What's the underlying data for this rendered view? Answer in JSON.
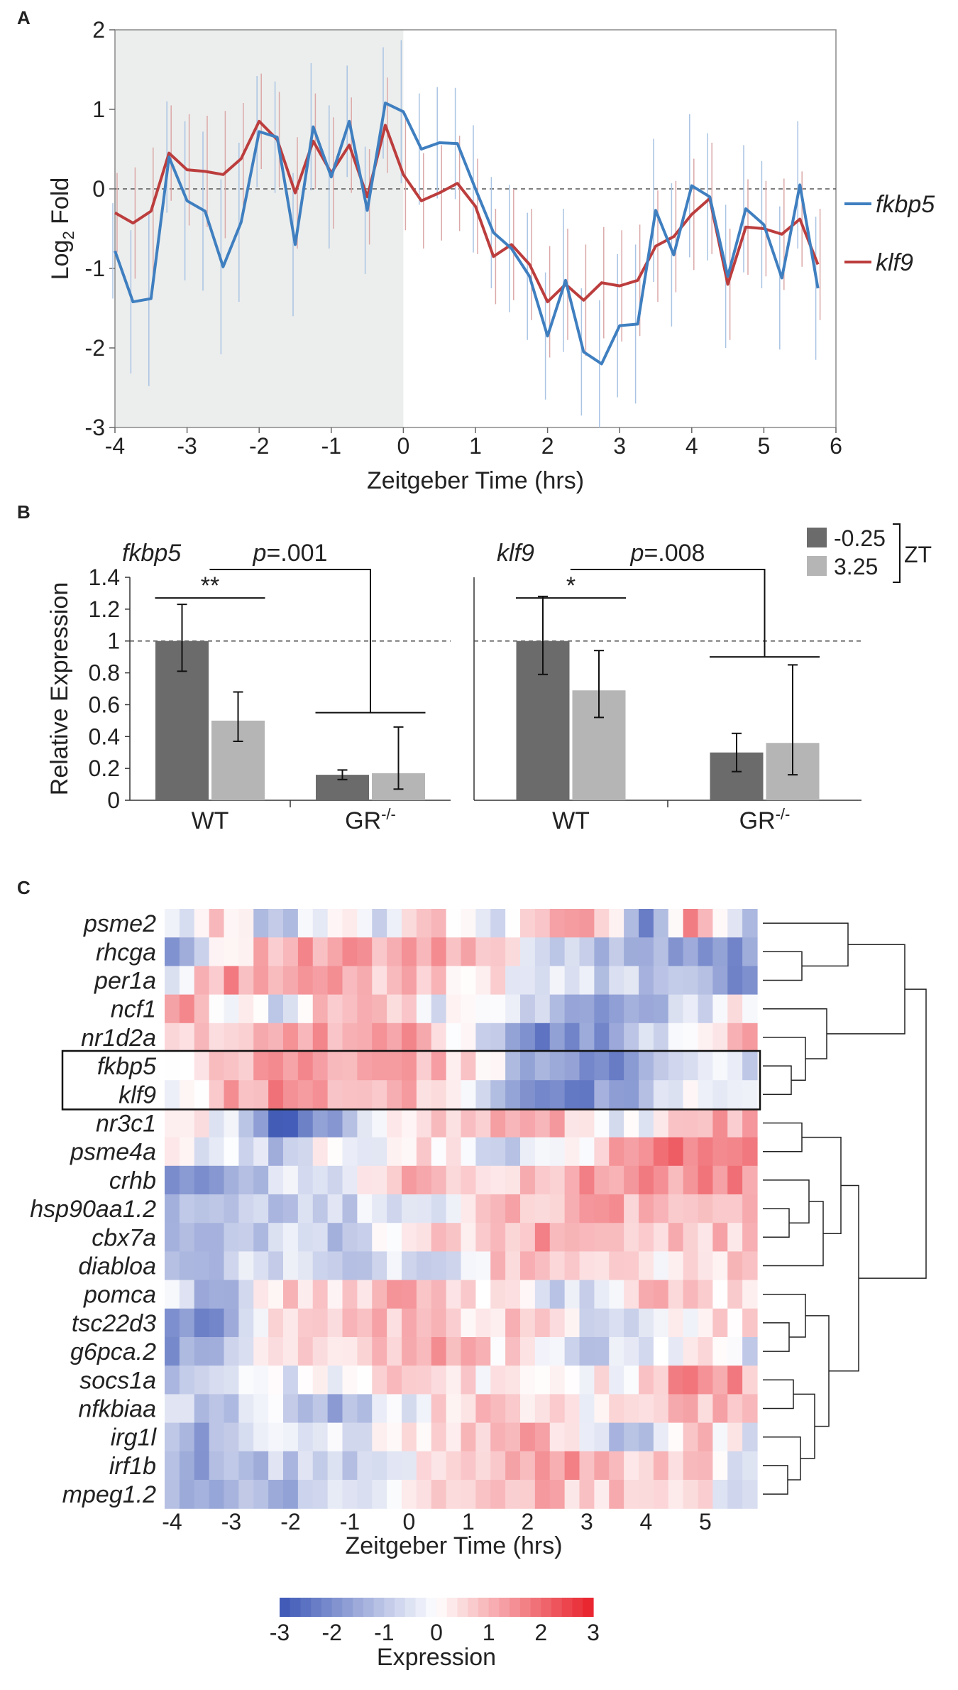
{
  "panels": {
    "a": "A",
    "b": "B",
    "c": "C"
  },
  "chart_data": [
    {
      "type": "line",
      "title": "",
      "xlabel": "Zeitgeber Time (hrs)",
      "ylabel_main": "Log",
      "ylabel_sub": "2",
      "ylabel_rest": " Fold",
      "xlim": [
        -4,
        6
      ],
      "ylim": [
        -3,
        2
      ],
      "x_ticks": [
        -4,
        -3,
        -2,
        -1,
        0,
        1,
        2,
        3,
        4,
        5,
        6
      ],
      "x_tick_labels": [
        "-4",
        "-3",
        "-2",
        "-1",
        "0",
        "1",
        "2",
        "3",
        "4",
        "5",
        "6"
      ],
      "y_ticks": [
        -3,
        -2,
        -1,
        0,
        1,
        2
      ],
      "y_tick_labels": [
        "-3",
        "-2",
        "-1",
        "0",
        "1",
        "2"
      ],
      "shaded_region": [
        -4,
        0
      ],
      "reference_line": 0,
      "x": [
        -4.0,
        -3.75,
        -3.5,
        -3.25,
        -3.0,
        -2.75,
        -2.5,
        -2.25,
        -2.0,
        -1.75,
        -1.5,
        -1.25,
        -1.0,
        -0.75,
        -0.5,
        -0.25,
        0.0,
        0.25,
        0.5,
        0.75,
        1.0,
        1.25,
        1.5,
        1.75,
        2.0,
        2.25,
        2.5,
        2.75,
        3.0,
        3.25,
        3.5,
        3.75,
        4.0,
        4.25,
        4.5,
        4.75,
        5.0,
        5.25,
        5.5,
        5.75
      ],
      "series": [
        {
          "name": "fkbp5",
          "color": "#3f7fc0",
          "values": [
            -0.78,
            -1.42,
            -1.38,
            0.4,
            -0.15,
            -0.28,
            -0.98,
            -0.42,
            0.72,
            0.65,
            -0.7,
            0.78,
            0.15,
            0.85,
            -0.27,
            1.08,
            0.97,
            0.5,
            0.58,
            0.57,
            0.0,
            -0.55,
            -0.75,
            -1.1,
            -1.85,
            -1.15,
            -2.05,
            -2.2,
            -1.72,
            -1.7,
            -0.27,
            -0.83,
            0.04,
            -0.1,
            -1.1,
            -0.25,
            -0.45,
            -1.12,
            0.05,
            -1.25
          ],
          "error": [
            0.6,
            0.9,
            1.1,
            0.7,
            1.0,
            1.0,
            1.1,
            1.0,
            0.7,
            0.7,
            0.9,
            0.8,
            0.9,
            0.7,
            0.8,
            0.7,
            0.9,
            0.7,
            0.7,
            0.7,
            0.8,
            0.7,
            0.8,
            0.8,
            0.8,
            0.9,
            0.8,
            0.8,
            0.9,
            1.0,
            0.9,
            0.9,
            0.9,
            0.8,
            0.9,
            0.8,
            0.8,
            0.9,
            0.8,
            0.9
          ]
        },
        {
          "name": "klf9",
          "color": "#bc3d3d",
          "values": [
            -0.3,
            -0.43,
            -0.28,
            0.45,
            0.24,
            0.22,
            0.18,
            0.38,
            0.85,
            0.62,
            -0.05,
            0.6,
            0.2,
            0.55,
            -0.1,
            0.8,
            0.18,
            -0.15,
            -0.05,
            0.07,
            -0.22,
            -0.85,
            -0.7,
            -0.95,
            -1.42,
            -1.2,
            -1.4,
            -1.18,
            -1.22,
            -1.15,
            -0.72,
            -0.6,
            -0.32,
            -0.12,
            -1.2,
            -0.48,
            -0.5,
            -0.57,
            -0.38,
            -0.95
          ],
          "error": [
            0.5,
            0.7,
            0.8,
            0.6,
            0.7,
            0.7,
            0.8,
            0.7,
            0.6,
            0.6,
            0.7,
            0.6,
            0.7,
            0.6,
            0.6,
            0.6,
            0.7,
            0.6,
            0.6,
            0.6,
            0.6,
            0.6,
            0.7,
            0.7,
            0.7,
            0.7,
            0.7,
            0.7,
            0.7,
            0.7,
            0.7,
            0.7,
            0.7,
            0.7,
            0.7,
            0.6,
            0.6,
            0.7,
            0.6,
            0.7
          ]
        }
      ],
      "legend": [
        "fkbp5",
        "klf9"
      ]
    },
    {
      "type": "bar",
      "ylabel": "Relative Expression",
      "ylim": [
        0,
        1.4
      ],
      "y_ticks": [
        0,
        0.2,
        0.4,
        0.6,
        0.8,
        1,
        1.2,
        1.4
      ],
      "y_tick_labels": [
        "0",
        "0.2",
        "0.4",
        "0.6",
        "0.8",
        "1",
        "1.2",
        "1.4"
      ],
      "reference_line": 1,
      "legend_title": "ZT",
      "legend": [
        {
          "label": "-0.25",
          "color": "#6b6b6b"
        },
        {
          "label": "3.25",
          "color": "#b5b5b5"
        }
      ],
      "genes": [
        {
          "name": "fkbp5",
          "p_value_label": "p",
          "p_value": "=.001",
          "stars": "**",
          "groups": [
            {
              "label": "WT",
              "label_sup": "",
              "values": [
                1.0,
                0.5
              ],
              "err_low": [
                0.19,
                0.13
              ],
              "err_high": [
                0.23,
                0.18
              ]
            },
            {
              "label": "GR",
              "label_sup": "-/-",
              "values": [
                0.16,
                0.17
              ],
              "err_low": [
                0.03,
                0.1
              ],
              "err_high": [
                0.03,
                0.29
              ]
            }
          ]
        },
        {
          "name": "klf9",
          "p_value_label": "p",
          "p_value": "=.008",
          "stars": "*",
          "groups": [
            {
              "label": "WT",
              "label_sup": "",
              "values": [
                1.0,
                0.69
              ],
              "err_low": [
                0.21,
                0.17
              ],
              "err_high": [
                0.28,
                0.25
              ]
            },
            {
              "label": "GR",
              "label_sup": "-/-",
              "values": [
                0.3,
                0.36
              ],
              "err_low": [
                0.12,
                0.2
              ],
              "err_high": [
                0.12,
                0.49
              ]
            }
          ]
        }
      ]
    },
    {
      "type": "heatmap",
      "xlabel": "Zeitgeber Time (hrs)",
      "x_tick_labels": [
        "-4",
        "-3",
        "-2",
        "-1",
        "0",
        "1",
        "2",
        "3",
        "4",
        "5"
      ],
      "x_tick_values": [
        -4,
        -3,
        -2,
        -1,
        0,
        1,
        2,
        3,
        4,
        5
      ],
      "n_timepoints": 40,
      "t_start": -4,
      "t_step": 0.25,
      "rows": [
        "psme2",
        "rhcga",
        "per1a",
        "ncf1",
        "nr1d2a",
        "fkbp5",
        "klf9",
        "nr3c1",
        "psme4a",
        "crhb",
        "hsp90aa1.2",
        "cbx7a",
        "diabloa",
        "pomca",
        "tsc22d3",
        "g6pca.2",
        "socs1a",
        "nfkbiaa",
        "irg1l",
        "irf1b",
        "mpeg1.2"
      ],
      "highlighted_rows": [
        "fkbp5",
        "klf9"
      ],
      "row_profiles": [
        [
          -0.5,
          0.8,
          -1.5,
          0.5,
          -0.5,
          1.2,
          -1.0,
          1.0,
          1.5,
          -2.5,
          2.0,
          -1.5
        ],
        [
          -2.0,
          0.5,
          1.0,
          1.2,
          1.0,
          1.2,
          0.8,
          -0.8,
          -1.0,
          -1.2,
          -1.5,
          -2.0
        ],
        [
          -0.5,
          1.5,
          1.2,
          1.0,
          0.8,
          0.8,
          0.3,
          -0.3,
          -0.8,
          -1.0,
          -1.5,
          -2.0
        ],
        [
          1.5,
          0.2,
          -0.5,
          1.0,
          1.0,
          -0.5,
          0.5,
          -1.0,
          -2.0,
          -1.5,
          -0.5,
          0.2
        ],
        [
          0.2,
          0.8,
          1.5,
          1.0,
          1.2,
          1.0,
          -0.5,
          -2.0,
          -1.8,
          -1.0,
          0.5,
          0.8
        ],
        [
          -0.3,
          0.5,
          1.5,
          1.2,
          1.2,
          1.0,
          0.0,
          -1.5,
          -2.0,
          -1.5,
          -0.5,
          -0.8
        ],
        [
          -0.3,
          1.0,
          1.5,
          1.3,
          1.2,
          0.8,
          -0.5,
          -2.0,
          -2.0,
          -1.2,
          -0.3,
          -0.5
        ],
        [
          0.2,
          0.0,
          -3.0,
          -2.0,
          0.5,
          0.5,
          1.0,
          1.5,
          0.0,
          -0.5,
          1.0,
          1.2
        ],
        [
          0.3,
          -0.5,
          -1.0,
          0.5,
          -0.5,
          0.5,
          -0.8,
          -0.5,
          0.5,
          1.5,
          2.0,
          1.8
        ],
        [
          -1.5,
          -2.0,
          -0.5,
          -0.5,
          0.8,
          1.0,
          0.8,
          1.0,
          1.2,
          1.5,
          1.3,
          1.5
        ],
        [
          -1.5,
          -1.2,
          -1.0,
          -0.8,
          -0.5,
          -0.3,
          0.5,
          1.0,
          1.2,
          1.0,
          0.8,
          0.8
        ],
        [
          -1.5,
          -1.5,
          -0.5,
          -1.0,
          0.0,
          0.5,
          0.8,
          1.2,
          0.5,
          0.8,
          0.8,
          0.8
        ],
        [
          -1.0,
          -0.8,
          -0.5,
          -1.0,
          -0.5,
          -1.0,
          0.5,
          0.8,
          0.5,
          0.2,
          0.5,
          0.5
        ],
        [
          -0.5,
          -1.5,
          0.5,
          0.5,
          1.0,
          0.8,
          0.5,
          -0.5,
          -0.8,
          1.5,
          0.5,
          0.3
        ],
        [
          -1.8,
          -2.0,
          0.5,
          0.3,
          0.8,
          0.5,
          0.5,
          0.8,
          -0.5,
          -0.5,
          0.3,
          0.5
        ],
        [
          -2.0,
          -1.0,
          0.5,
          0.5,
          0.8,
          1.5,
          0.5,
          0.3,
          -1.0,
          -0.5,
          0.2,
          -0.5
        ],
        [
          -1.0,
          -0.5,
          -0.5,
          0.0,
          0.5,
          0.8,
          0.3,
          -0.5,
          0.0,
          0.5,
          2.0,
          1.0
        ],
        [
          -1.0,
          -0.8,
          -0.3,
          -1.5,
          -0.8,
          0.5,
          0.8,
          0.3,
          0.0,
          0.3,
          1.0,
          0.5
        ],
        [
          -1.2,
          -1.5,
          -0.5,
          -0.5,
          0.0,
          0.5,
          0.8,
          1.5,
          -0.5,
          -1.5,
          0.8,
          -0.5
        ],
        [
          -1.5,
          -1.5,
          -1.0,
          -0.5,
          -0.8,
          0.3,
          0.8,
          1.5,
          1.0,
          0.5,
          0.8,
          -0.5
        ],
        [
          -1.5,
          -1.5,
          -1.2,
          -0.8,
          -0.5,
          0.3,
          0.8,
          1.0,
          0.8,
          0.5,
          0.5,
          -1.0
        ]
      ],
      "colorbar": {
        "label": "Expression",
        "range": [
          -3,
          3
        ],
        "ticks": [
          -3,
          -2,
          -1,
          0,
          1,
          2,
          3
        ],
        "tick_labels": [
          "-3",
          "-2",
          "-1",
          "0",
          "1",
          "2",
          "3"
        ],
        "low_color": "#3a55b4",
        "mid_color": "#ffffff",
        "high_color": "#e8202a"
      }
    }
  ]
}
